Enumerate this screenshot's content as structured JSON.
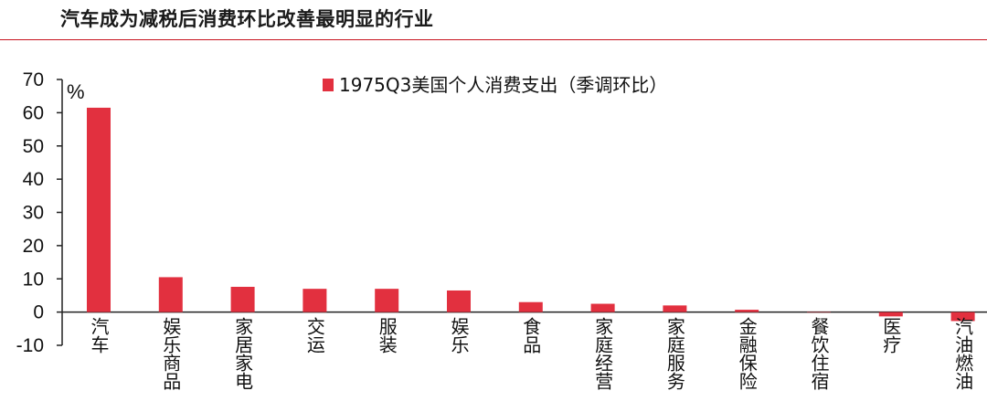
{
  "header": {
    "title": "汽车成为减税后消费环比改善最明显的行业"
  },
  "colors": {
    "accent": "#c8141f",
    "bar": "#e2303f"
  },
  "chart_data": {
    "type": "bar",
    "title": "",
    "unit_label": "%",
    "categories": [
      "汽车",
      "娱乐商品",
      "家居家电",
      "交运",
      "服装",
      "娱乐",
      "食品",
      "家庭经营",
      "家庭服务",
      "金融保险",
      "餐饮住宿",
      "医疗",
      "汽油燃油"
    ],
    "series": [
      {
        "name": "1975Q3美国个人消费支出（季调环比）",
        "values": [
          61.5,
          10.5,
          7.6,
          7.0,
          7.0,
          6.5,
          3.0,
          2.5,
          2.0,
          0.7,
          0.0,
          -1.3,
          -2.7
        ]
      }
    ],
    "ylim": [
      -10,
      70
    ],
    "yticks": [
      70,
      60,
      50,
      40,
      30,
      20,
      10,
      0,
      -10
    ],
    "legend_position": "top-center",
    "grid": false
  }
}
